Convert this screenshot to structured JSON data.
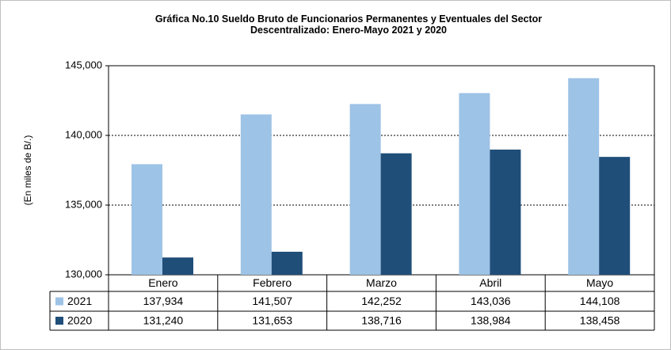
{
  "chart_data": {
    "type": "bar",
    "title": "Gráfica No.10 Sueldo Bruto de Funcionarios Permanentes y Eventuales del Sector\nDescentralizado: Enero-Mayo 2021 y 2020",
    "y_label": "(En miles de B/.)",
    "categories": [
      "Enero",
      "Febrero",
      "Marzo",
      "Abril",
      "Mayo"
    ],
    "series": [
      {
        "name": "2021",
        "color": "#9dc3e6",
        "values": [
          137934,
          141507,
          142252,
          143036,
          144108
        ],
        "value_labels": [
          "137,934",
          "141,507",
          "142,252",
          "143,036",
          "144,108"
        ]
      },
      {
        "name": "2020",
        "color": "#1f4e79",
        "values": [
          131240,
          131653,
          138716,
          138984,
          138458
        ],
        "value_labels": [
          "131,240",
          "131,653",
          "138,716",
          "138,984",
          "138,458"
        ]
      }
    ],
    "ylim": [
      130000,
      145000
    ],
    "yticks": [
      {
        "value": 130000,
        "label": "130,000"
      },
      {
        "value": 135000,
        "label": "135,000"
      },
      {
        "value": 140000,
        "label": "140,000"
      },
      {
        "value": 145000,
        "label": "145,000"
      }
    ],
    "grid": true
  }
}
